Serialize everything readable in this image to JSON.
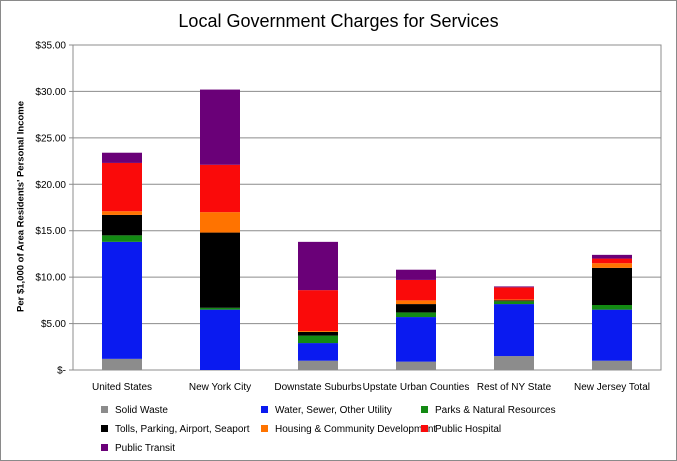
{
  "chart_data": {
    "type": "bar",
    "stacked": true,
    "title": "Local Government Charges for Services",
    "ylabel": "Per $1,000 of Area Residents' Personal Income",
    "xlabel": "",
    "ylim": [
      0,
      35
    ],
    "yticks": [
      "$-",
      "$5.00",
      "$10.00",
      "$15.00",
      "$20.00",
      "$25.00",
      "$30.00",
      "$35.00"
    ],
    "grid": true,
    "legend_position": "bottom",
    "categories": [
      "United States",
      "New York City",
      "Downstate Suburbs",
      "Upstate Urban Counties",
      "Rest of NY State",
      "New Jersey Total"
    ],
    "series": [
      {
        "name": "Solid Waste",
        "color": "#8c8c8c",
        "values": [
          1.2,
          0.0,
          1.0,
          0.9,
          1.5,
          1.0
        ]
      },
      {
        "name": "Water, Sewer, Other Utility",
        "color": "#0a1af0",
        "values": [
          12.6,
          6.5,
          1.9,
          4.8,
          5.6,
          5.5
        ]
      },
      {
        "name": "Parks & Natural Resources",
        "color": "#138a13",
        "values": [
          0.7,
          0.2,
          0.8,
          0.5,
          0.3,
          0.5
        ]
      },
      {
        "name": "Tolls, Parking, Airport, Seaport",
        "color": "#000000",
        "values": [
          2.2,
          8.1,
          0.4,
          0.9,
          0.1,
          4.0
        ]
      },
      {
        "name": "Housing & Community Development",
        "color": "#ff7300",
        "values": [
          0.4,
          2.2,
          0.1,
          0.4,
          0.1,
          0.5
        ]
      },
      {
        "name": "Public Hospital",
        "color": "#fa0a0a",
        "values": [
          5.2,
          5.1,
          4.4,
          2.2,
          1.3,
          0.5
        ]
      },
      {
        "name": "Public Transit",
        "color": "#6a0078",
        "values": [
          1.1,
          8.1,
          5.2,
          1.1,
          0.1,
          0.4
        ]
      }
    ]
  }
}
